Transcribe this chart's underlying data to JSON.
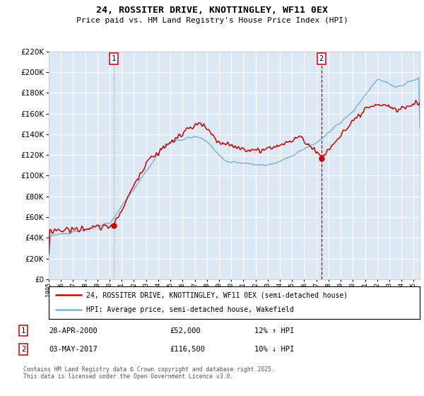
{
  "title": "24, ROSSITER DRIVE, KNOTTINGLEY, WF11 0EX",
  "subtitle": "Price paid vs. HM Land Registry's House Price Index (HPI)",
  "legend_line1": "24, ROSSITER DRIVE, KNOTTINGLEY, WF11 0EX (semi-detached house)",
  "legend_line2": "HPI: Average price, semi-detached house, Wakefield",
  "sale1_date": "28-APR-2000",
  "sale1_price": 52000,
  "sale1_hpi": "12% ↑ HPI",
  "sale2_date": "03-MAY-2017",
  "sale2_price": 116500,
  "sale2_hpi": "10% ↓ HPI",
  "footnote": "Contains HM Land Registry data © Crown copyright and database right 2025.\nThis data is licensed under the Open Government Licence v3.0.",
  "hpi_color": "#7bafd4",
  "sale_color": "#cc0000",
  "background_color": "#dce9f5",
  "grid_color": "#ffffff",
  "ylim": [
    0,
    220000
  ],
  "yticks": [
    0,
    20000,
    40000,
    60000,
    80000,
    100000,
    120000,
    140000,
    160000,
    180000,
    200000,
    220000
  ],
  "xstart_year": 1995,
  "xend_year": 2025
}
